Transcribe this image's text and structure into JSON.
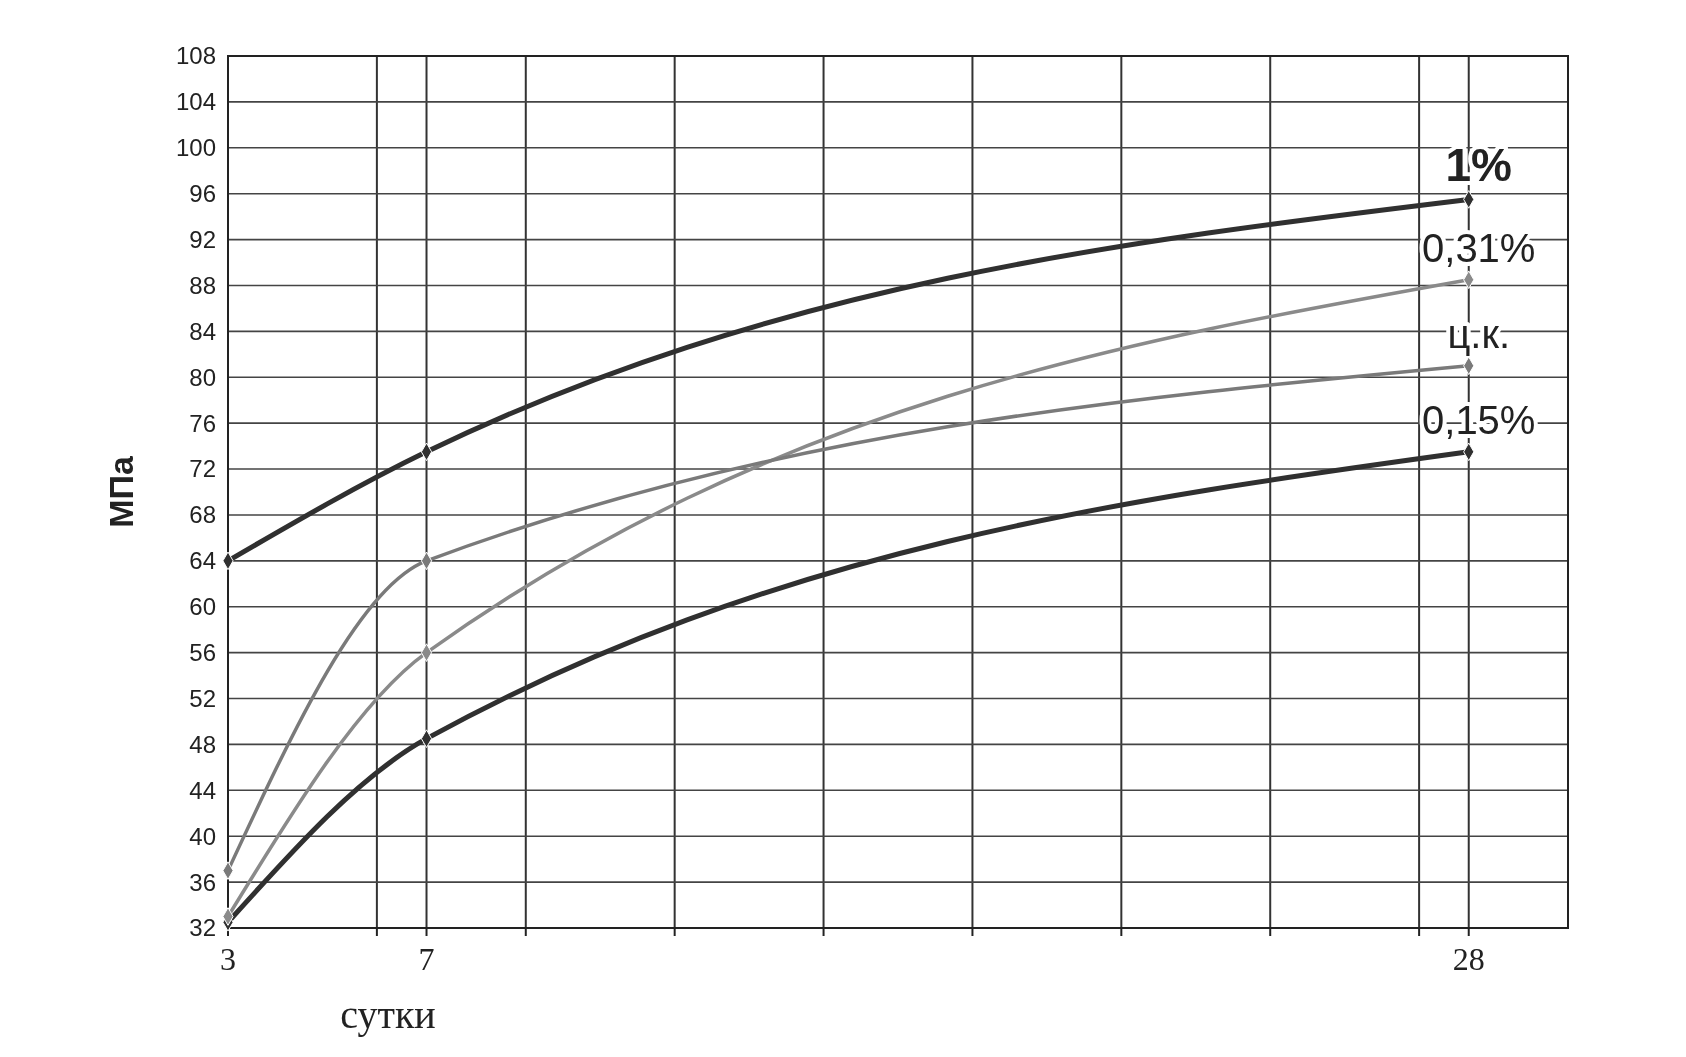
{
  "chart_data": {
    "type": "line",
    "xlabel": "сутки",
    "ylabel": "МПа",
    "xlim": [
      3,
      30
    ],
    "xticks": [
      3,
      {
        "value": 6,
        "label": null
      },
      7,
      {
        "value": 9,
        "label": null
      },
      {
        "value": 12,
        "label": null
      },
      {
        "value": 15,
        "label": null
      },
      {
        "value": 18,
        "label": null
      },
      {
        "value": 21,
        "label": null
      },
      {
        "value": 24,
        "label": null
      },
      {
        "value": 27,
        "label": null
      },
      28
    ],
    "ylim": [
      32,
      108
    ],
    "yticks": [
      32,
      36,
      40,
      44,
      48,
      52,
      56,
      60,
      64,
      68,
      72,
      76,
      80,
      84,
      88,
      92,
      96,
      100,
      104,
      108
    ],
    "grid": true,
    "marker": "diamond",
    "series": [
      {
        "name": "1%",
        "color": "#303030",
        "x": [
          3,
          7,
          28
        ],
        "values": [
          64,
          73.5,
          95.5
        ]
      },
      {
        "name": "0,31%",
        "color": "#8a8a8a",
        "x": [
          3,
          7,
          28
        ],
        "values": [
          33,
          56,
          88.5
        ]
      },
      {
        "name": "ц.к.",
        "color": "#7a7a7a",
        "x": [
          3,
          7,
          28
        ],
        "values": [
          37,
          64,
          81
        ]
      },
      {
        "name": "0,15%",
        "color": "#303030",
        "x": [
          3,
          7,
          28
        ],
        "values": [
          32.5,
          48.5,
          73.5
        ]
      }
    ]
  }
}
